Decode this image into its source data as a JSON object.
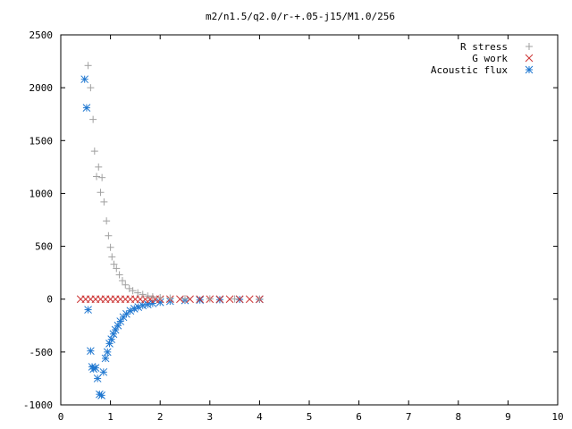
{
  "chart_data": {
    "type": "scatter",
    "title": "m2/n1.5/q2.0/r-+.05-j15/M1.0/256",
    "xlim": [
      0,
      10
    ],
    "ylim": [
      -1000,
      2500
    ],
    "x_ticks": [
      "0",
      "1",
      "2",
      "3",
      "4",
      "5",
      "6",
      "7",
      "8",
      "9",
      "10"
    ],
    "y_ticks": [
      "2500",
      "2000",
      "1500",
      "1000",
      "500",
      "0",
      "-500",
      "-1000"
    ],
    "legend_position": "top-right",
    "series": [
      {
        "name": "R stress",
        "marker": "plus",
        "color": "#a0a0a0",
        "points": [
          [
            0.55,
            2210
          ],
          [
            0.6,
            2000
          ],
          [
            0.65,
            1700
          ],
          [
            0.68,
            1400
          ],
          [
            0.72,
            1160
          ],
          [
            0.76,
            1250
          ],
          [
            0.8,
            1010
          ],
          [
            0.83,
            1150
          ],
          [
            0.87,
            920
          ],
          [
            0.92,
            740
          ],
          [
            0.96,
            600
          ],
          [
            1.0,
            490
          ],
          [
            1.03,
            400
          ],
          [
            1.07,
            330
          ],
          [
            1.12,
            290
          ],
          [
            1.18,
            230
          ],
          [
            1.24,
            175
          ],
          [
            1.3,
            135
          ],
          [
            1.38,
            100
          ],
          [
            1.45,
            80
          ],
          [
            1.55,
            60
          ],
          [
            1.65,
            45
          ],
          [
            1.75,
            30
          ],
          [
            1.85,
            22
          ],
          [
            2.0,
            15
          ],
          [
            2.2,
            10
          ],
          [
            2.5,
            5
          ],
          [
            3.0,
            3
          ],
          [
            3.5,
            2
          ],
          [
            4.0,
            1
          ]
        ]
      },
      {
        "name": "G work",
        "marker": "cross",
        "color": "#cc3333",
        "points": [
          [
            0.4,
            0
          ],
          [
            0.5,
            0
          ],
          [
            0.6,
            0
          ],
          [
            0.7,
            0
          ],
          [
            0.8,
            0
          ],
          [
            0.9,
            0
          ],
          [
            1.0,
            0
          ],
          [
            1.1,
            0
          ],
          [
            1.2,
            0
          ],
          [
            1.3,
            0
          ],
          [
            1.4,
            0
          ],
          [
            1.5,
            0
          ],
          [
            1.6,
            0
          ],
          [
            1.7,
            0
          ],
          [
            1.8,
            0
          ],
          [
            1.9,
            0
          ],
          [
            2.0,
            0
          ],
          [
            2.2,
            0
          ],
          [
            2.4,
            0
          ],
          [
            2.6,
            0
          ],
          [
            2.8,
            0
          ],
          [
            3.0,
            0
          ],
          [
            3.2,
            0
          ],
          [
            3.4,
            0
          ],
          [
            3.6,
            0
          ],
          [
            3.8,
            0
          ],
          [
            4.0,
            0
          ]
        ]
      },
      {
        "name": "Acoustic flux",
        "marker": "star",
        "color": "#1f77d0",
        "points": [
          [
            0.48,
            2080
          ],
          [
            0.52,
            1810
          ],
          [
            0.55,
            -100
          ],
          [
            0.6,
            -490
          ],
          [
            0.63,
            -640
          ],
          [
            0.66,
            -660
          ],
          [
            0.7,
            -650
          ],
          [
            0.74,
            -750
          ],
          [
            0.78,
            -900
          ],
          [
            0.82,
            -910
          ],
          [
            0.86,
            -690
          ],
          [
            0.9,
            -560
          ],
          [
            0.94,
            -500
          ],
          [
            0.98,
            -420
          ],
          [
            1.02,
            -380
          ],
          [
            1.06,
            -330
          ],
          [
            1.1,
            -290
          ],
          [
            1.15,
            -250
          ],
          [
            1.2,
            -210
          ],
          [
            1.26,
            -170
          ],
          [
            1.32,
            -140
          ],
          [
            1.4,
            -110
          ],
          [
            1.48,
            -90
          ],
          [
            1.56,
            -75
          ],
          [
            1.65,
            -60
          ],
          [
            1.75,
            -50
          ],
          [
            1.85,
            -40
          ],
          [
            2.0,
            -30
          ],
          [
            2.2,
            -20
          ],
          [
            2.5,
            -12
          ],
          [
            2.8,
            -8
          ],
          [
            3.2,
            -5
          ],
          [
            3.6,
            -3
          ],
          [
            4.0,
            -2
          ]
        ]
      }
    ]
  }
}
